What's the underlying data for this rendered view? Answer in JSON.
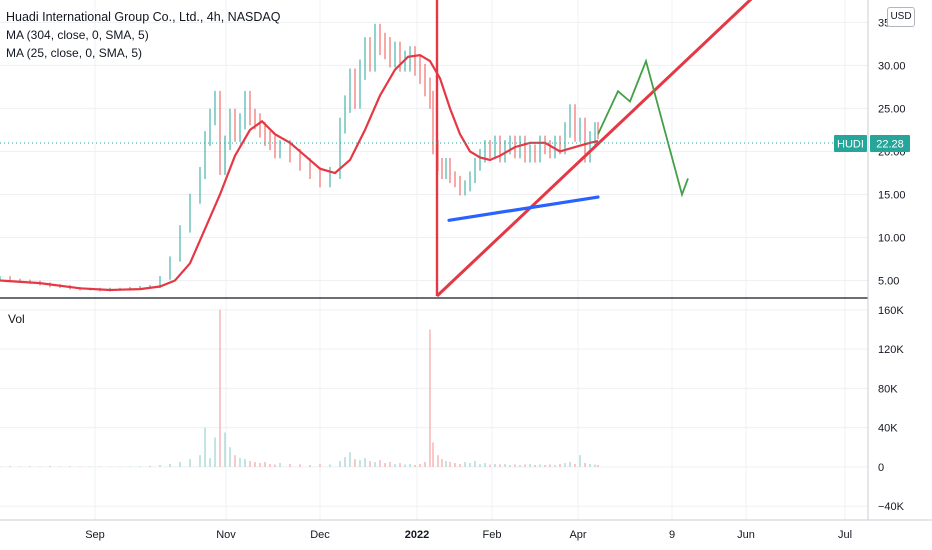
{
  "header": {
    "title": "Huadi International Group Co., Ltd., 4h, NASDAQ",
    "indicators": [
      "MA (304, close, 0, SMA, 5)",
      "MA (25, close, 0, SMA, 5)"
    ],
    "currency": "USD"
  },
  "volume_pane": {
    "label": "Vol"
  },
  "last_price": {
    "symbol": "HUDI",
    "value": "22.28",
    "color": "#26a69a"
  },
  "chart_data": [
    {
      "type": "candlestick",
      "title": "Huadi International Group Co., Ltd., 4h, NASDAQ",
      "x_ticks": [
        "Sep",
        "Nov",
        "Dec",
        "2022",
        "Feb",
        "Apr",
        "9",
        "Jun",
        "Jul"
      ],
      "y_ticks": [
        "35.00",
        "30.00",
        "25.00",
        "20.00",
        "15.00",
        "10.00",
        "5.00"
      ],
      "ylim": [
        3.2,
        37.6
      ],
      "price_series": {
        "x": [
          0,
          10,
          20,
          30,
          40,
          50,
          60,
          70,
          80,
          90,
          100,
          110,
          120,
          130,
          140,
          150,
          160,
          170,
          180,
          190,
          200,
          205,
          210,
          215,
          220,
          225,
          230,
          235,
          240,
          245,
          250,
          255,
          260,
          265,
          270,
          275,
          280,
          290,
          300,
          310,
          320,
          330,
          340,
          345,
          350,
          355,
          360,
          365,
          370,
          375,
          380,
          385,
          390,
          395,
          400,
          405,
          410,
          415,
          420,
          425,
          430,
          433,
          438,
          442,
          446,
          450,
          455,
          460,
          465,
          470,
          475,
          480,
          485,
          490,
          495,
          500,
          505,
          510,
          515,
          520,
          525,
          530,
          535,
          540,
          545,
          550,
          555,
          560,
          565,
          570,
          575,
          580,
          585,
          590,
          595,
          598
        ],
        "close": [
          5.3,
          5.0,
          4.9,
          4.8,
          4.6,
          4.4,
          4.3,
          4.1,
          4.0,
          4.0,
          3.9,
          4.0,
          4.0,
          4.1,
          4.2,
          4.3,
          5.3,
          7.5,
          11.0,
          14.5,
          17.5,
          21.5,
          24.0,
          26.0,
          18.0,
          21.0,
          24.0,
          22.0,
          23.5,
          26.0,
          24.0,
          23.5,
          22.5,
          21.5,
          21.0,
          20.0,
          20.5,
          19.5,
          18.5,
          17.5,
          16.5,
          17.5,
          23.0,
          25.5,
          28.5,
          26.0,
          29.5,
          32.0,
          30.5,
          33.5,
          32.5,
          32.0,
          31.0,
          31.5,
          30.5,
          30.5,
          31.0,
          30.0,
          29.0,
          27.5,
          26.0,
          20.5,
          18.5,
          17.5,
          18.5,
          17.0,
          16.5,
          15.5,
          16.0,
          17.0,
          18.5,
          19.5,
          20.5,
          20.0,
          21.0,
          19.5,
          20.5,
          21.0,
          20.0,
          21.0,
          19.5,
          20.0,
          19.5,
          21.0,
          20.5,
          20.0,
          21.0,
          20.5,
          22.5,
          24.5,
          22.0,
          23.0,
          19.5,
          21.5,
          22.5,
          22.3
        ],
        "volume": [
          600,
          800,
          500,
          700,
          400,
          900,
          300,
          600,
          500,
          400,
          500,
          300,
          400,
          500,
          600,
          1200,
          2000,
          3000,
          5000,
          8000,
          12000,
          40000,
          9000,
          30000,
          160000,
          35000,
          20000,
          12000,
          9000,
          8000,
          6000,
          5000,
          4000,
          5000,
          3000,
          2500,
          4000,
          3000,
          2500,
          2000,
          3000,
          2500,
          6000,
          10000,
          15000,
          8000,
          7000,
          9000,
          6000,
          5000,
          7000,
          4000,
          5000,
          3000,
          4000,
          2500,
          3000,
          2000,
          3000,
          5000,
          140000,
          25000,
          12000,
          8000,
          6000,
          5000,
          4000,
          3000,
          5000,
          4000,
          6000,
          3000,
          4000,
          2500,
          3000,
          2500,
          3000,
          2000,
          2500,
          2000,
          2500,
          3000,
          2000,
          2500,
          2000,
          2500,
          2000,
          3000,
          4000,
          5000,
          3000,
          12000,
          4000,
          3000,
          2500,
          2000
        ]
      },
      "ma_series": {
        "name": "MA (25, close, 0, SMA, 5)",
        "color": "#e53845",
        "x": [
          0,
          40,
          80,
          110,
          140,
          160,
          175,
          190,
          205,
          220,
          235,
          250,
          262,
          275,
          290,
          305,
          320,
          335,
          350,
          365,
          380,
          395,
          408,
          420,
          430,
          440,
          450,
          460,
          470,
          480,
          490,
          500,
          515,
          530,
          545,
          560,
          575,
          590,
          598
        ],
        "y": [
          5.0,
          4.7,
          4.1,
          3.9,
          4.0,
          4.3,
          5.0,
          7.0,
          11.0,
          15.0,
          19.5,
          22.5,
          23.5,
          22.0,
          21.0,
          19.5,
          18.0,
          17.5,
          19.0,
          22.5,
          26.5,
          29.5,
          31.0,
          31.2,
          30.5,
          28.5,
          25.0,
          22.0,
          20.0,
          19.3,
          19.0,
          19.5,
          20.5,
          21.0,
          21.0,
          20.0,
          20.5,
          21.0,
          21.2
        ]
      },
      "drawings": {
        "trend_line": {
          "color": "#e53845",
          "x": [
            437,
            772
          ],
          "y": [
            3.2,
            40.0
          ]
        },
        "vertical_line": {
          "color": "#e53845",
          "x": 437
        },
        "blue_line": {
          "color": "#2962ff",
          "x": [
            449,
            598
          ],
          "y": [
            12.0,
            14.7
          ]
        },
        "projection": {
          "color": "#43a047",
          "x": [
            598,
            618,
            630,
            646,
            682
          ],
          "y": [
            22.0,
            27.0,
            25.8,
            30.5,
            15.0
          ]
        }
      }
    },
    {
      "type": "bar",
      "title": "Vol",
      "y_ticks": [
        "160K",
        "120K",
        "80K",
        "40K",
        "0",
        "−40K"
      ],
      "ylim": [
        -52000,
        170000
      ]
    }
  ]
}
